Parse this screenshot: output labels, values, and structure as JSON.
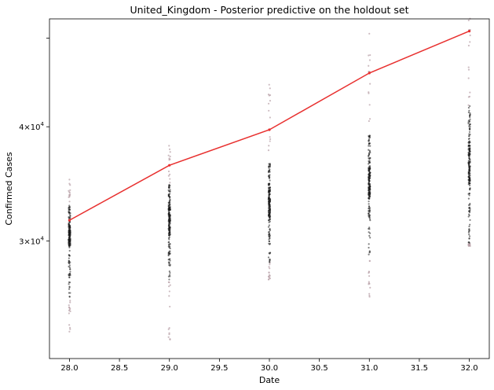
{
  "chart_data": {
    "type": "scatter",
    "title": "United_Kingdom - Posterior predictive on the holdout set",
    "xlabel": "Date",
    "ylabel": "Confirmed Cases",
    "xlim": [
      27.8,
      32.2
    ],
    "ylim": [
      22300,
      52500
    ],
    "y_scale": "log",
    "x_ticks": [
      28.0,
      28.5,
      29.0,
      29.5,
      30.0,
      30.5,
      31.0,
      31.5,
      32.0
    ],
    "x_tick_labels": [
      "28.0",
      "28.5",
      "29.0",
      "29.5",
      "30.0",
      "30.5",
      "31.0",
      "31.5",
      "32.0"
    ],
    "y_ticks": [
      {
        "value": 30000,
        "mantissa": "3",
        "exponent": "4"
      },
      {
        "value": 40000,
        "mantissa": "4",
        "exponent": "4"
      },
      {
        "value": 50000,
        "mantissa": "",
        "exponent": ""
      }
    ],
    "grid": false,
    "colors": {
      "samples": "#1a1a1a",
      "outlier_samples": "#b8a0a6",
      "observed": "#e8302f"
    },
    "observed_series": {
      "x": [
        28,
        29,
        30,
        31,
        32
      ],
      "y": [
        31600,
        36300,
        39700,
        45800,
        50900
      ]
    },
    "posterior_samples": [
      {
        "x": 28,
        "p2": 26000,
        "p25": 29600,
        "median": 30200,
        "p75": 31100,
        "p98": 32800,
        "min": 23600,
        "max": 35100
      },
      {
        "x": 29,
        "p2": 27200,
        "p25": 30400,
        "median": 31800,
        "p75": 32700,
        "p98": 34600,
        "min": 22800,
        "max": 38400
      },
      {
        "x": 30,
        "p2": 28400,
        "p25": 31800,
        "median": 32900,
        "p75": 34200,
        "p98": 36600,
        "min": 27200,
        "max": 44600
      },
      {
        "x": 31,
        "p2": 28600,
        "p25": 33400,
        "median": 34600,
        "p75": 36100,
        "p98": 39200,
        "min": 25800,
        "max": 51200
      },
      {
        "x": 32,
        "p2": 29800,
        "p25": 34600,
        "median": 36300,
        "p75": 38200,
        "p98": 42200,
        "min": 29600,
        "max": 54400
      }
    ]
  }
}
